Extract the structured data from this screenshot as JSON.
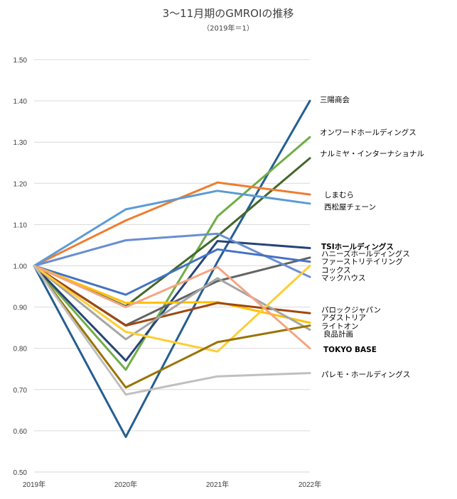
{
  "chart_data": {
    "type": "line",
    "title": "3～11月期のGMROIの推移",
    "subtitle": "（2019年＝1）",
    "categories": [
      "2019年",
      "2020年",
      "2021年",
      "2022年"
    ],
    "ylim": [
      0.5,
      1.5
    ],
    "yticks": [
      "0.50",
      "0.60",
      "0.70",
      "0.80",
      "0.90",
      "1.00",
      "1.10",
      "1.20",
      "1.30",
      "1.40",
      "1.50"
    ],
    "grid": true,
    "xlabel": "",
    "ylabel": "",
    "series": [
      {
        "name": "三陽商会",
        "color": "#255e91",
        "values": [
          1.0,
          0.585,
          1.01,
          1.4
        ]
      },
      {
        "name": "オンワードホールディングス",
        "color": "#70ad47",
        "values": [
          1.0,
          0.748,
          1.12,
          1.312
        ]
      },
      {
        "name": "ナルミヤ・インターナショナル",
        "color": "#43682b",
        "values": [
          1.0,
          0.902,
          1.072,
          1.261
        ]
      },
      {
        "name": "しまむら",
        "color": "#ed7d31",
        "values": [
          1.0,
          1.11,
          1.202,
          1.173
        ]
      },
      {
        "name": "西松屋チェーン",
        "color": "#5b9bd5",
        "values": [
          1.0,
          1.137,
          1.182,
          1.151
        ]
      },
      {
        "name": "TSIホールディングス",
        "color": "#264478",
        "values": [
          1.0,
          0.77,
          1.06,
          1.043
        ]
      },
      {
        "name": "ハニーズホールディングス",
        "color": "#636363",
        "values": [
          1.0,
          0.856,
          0.963,
          1.02
        ]
      },
      {
        "name": "ファーストリテイリング",
        "color": "#698ed0",
        "values": [
          1.0,
          1.062,
          1.078,
          0.973
        ]
      },
      {
        "name": "コックス",
        "color": "#4472c4",
        "values": [
          1.0,
          0.93,
          1.04,
          1.01
        ]
      },
      {
        "name": "マックハウス",
        "color": "#ffc000",
        "values": [
          1.0,
          0.91,
          0.912,
          0.862
        ]
      },
      {
        "name": "パロックジャパン",
        "color": "#9e480e",
        "values": [
          1.0,
          0.855,
          0.91,
          0.885
        ]
      },
      {
        "name": "アダストリア",
        "color": "#a5a5a5",
        "values": [
          1.0,
          0.822,
          0.97,
          0.845
        ]
      },
      {
        "name": "ライトオン",
        "color": "#ffcd33",
        "values": [
          1.0,
          0.84,
          0.792,
          1.0
        ]
      },
      {
        "name": "良品計画",
        "color": "#997300",
        "values": [
          1.0,
          0.705,
          0.815,
          0.855
        ]
      },
      {
        "name": "TOKYO BASE",
        "color": "#f4a582",
        "values": [
          1.0,
          0.9,
          0.997,
          0.8
        ]
      },
      {
        "name": "パレモ・ホールディングス",
        "color": "#bfbfbf",
        "values": [
          1.0,
          0.688,
          0.732,
          0.74
        ]
      }
    ]
  }
}
